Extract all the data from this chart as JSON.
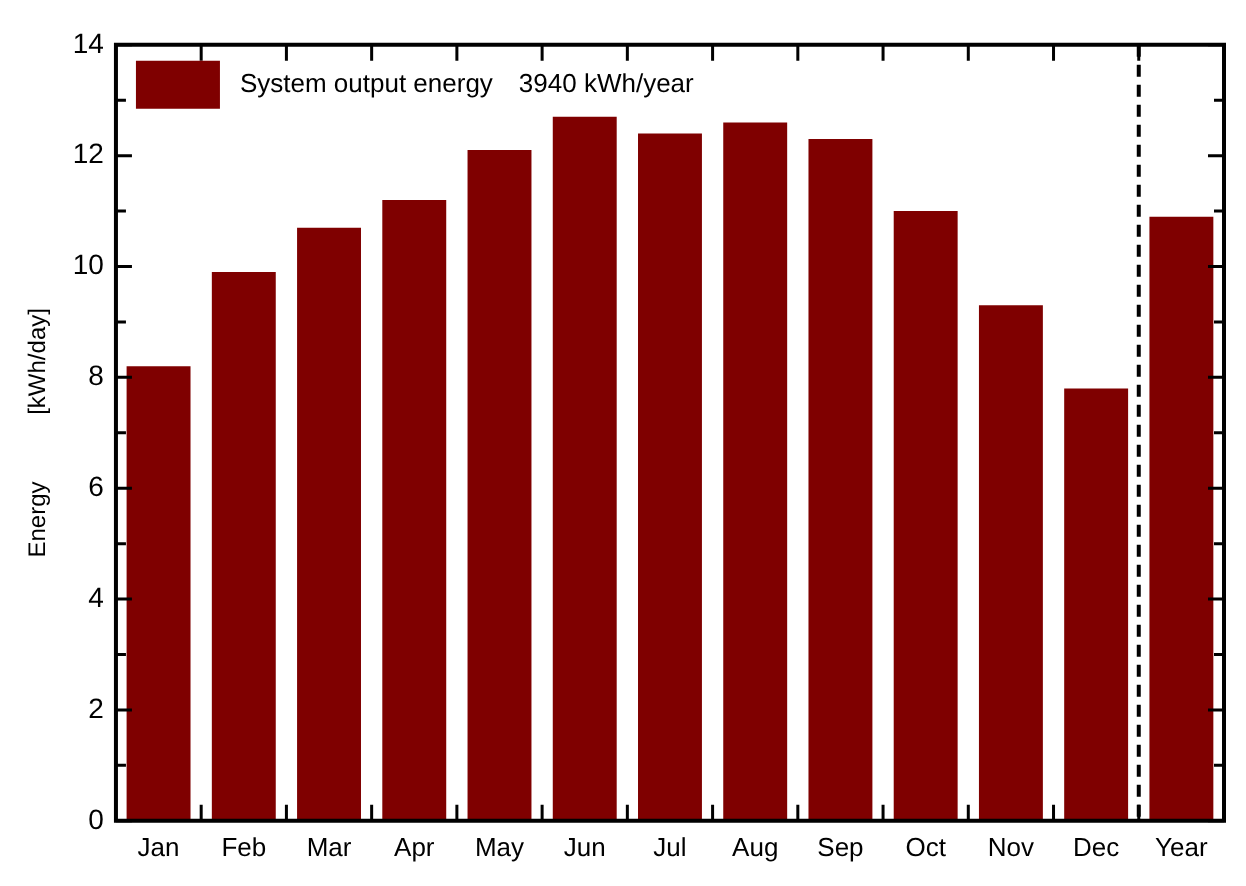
{
  "chart_data": {
    "type": "bar",
    "ylabel": "Energy [kWh/day]",
    "categories": [
      "Jan",
      "Feb",
      "Mar",
      "Apr",
      "May",
      "Jun",
      "Jul",
      "Aug",
      "Sep",
      "Oct",
      "Nov",
      "Dec",
      "Year"
    ],
    "series": [
      {
        "name": "System output energy   3940 kWh/year",
        "color": "#7f0000",
        "values": [
          8.2,
          9.9,
          10.7,
          11.2,
          12.1,
          12.7,
          12.4,
          12.6,
          12.3,
          11.0,
          9.3,
          7.8,
          10.9
        ]
      }
    ],
    "ylim": [
      0,
      14
    ],
    "yticks": [
      0,
      {
        "value": 1,
        "label": null
      },
      2,
      {
        "value": 3,
        "label": null
      },
      4,
      {
        "value": 5,
        "label": null
      },
      6,
      {
        "value": 7,
        "label": null
      },
      8,
      {
        "value": 9,
        "label": null
      },
      10,
      {
        "value": 11,
        "label": null
      },
      12,
      {
        "value": 13,
        "label": null
      },
      14
    ],
    "legend": "top left",
    "grid": false
  }
}
